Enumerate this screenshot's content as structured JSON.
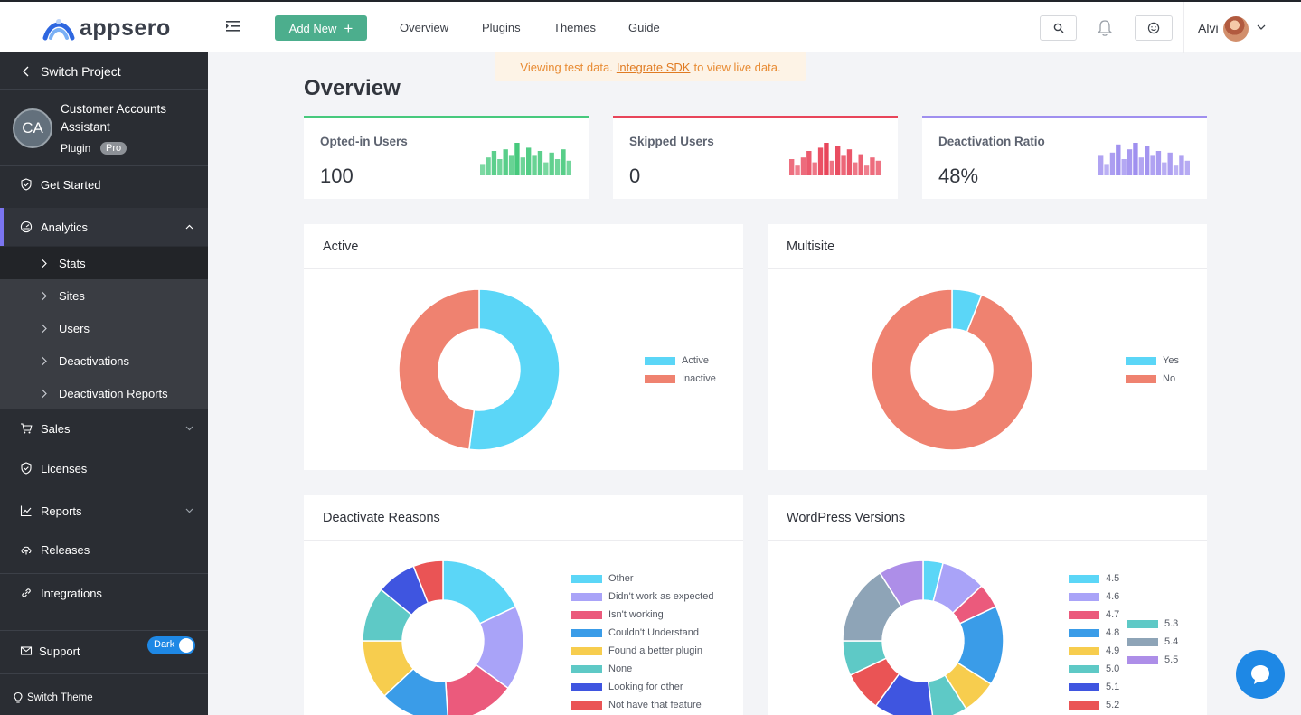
{
  "app": {
    "logo_text": "appsero"
  },
  "topbar": {
    "add_new_label": "Add New",
    "nav": [
      "Overview",
      "Plugins",
      "Themes",
      "Guide"
    ],
    "user_name": "Alvi"
  },
  "notice": {
    "before": "Viewing test data.",
    "link": "Integrate SDK",
    "after": "to view live data."
  },
  "sidebar": {
    "switch_project": "Switch Project",
    "project": {
      "initials": "CA",
      "name": "Customer Accounts Assistant",
      "type": "Plugin",
      "badge": "Pro"
    },
    "get_started": "Get Started",
    "analytics": "Analytics",
    "analytics_sub": [
      "Stats",
      "Sites",
      "Users",
      "Deactivations",
      "Deactivation Reports"
    ],
    "sales": "Sales",
    "licenses": "Licenses",
    "reports": "Reports",
    "releases": "Releases",
    "integrations": "Integrations",
    "support": "Support",
    "switch_theme": "Switch Theme",
    "theme_toggle": "Dark"
  },
  "overview": {
    "title": "Overview",
    "cards": [
      {
        "label": "Opted-in Users",
        "value": "100",
        "color": "#47c97d",
        "spark": [
          0.35,
          0.55,
          0.75,
          0.5,
          0.8,
          0.6,
          1.0,
          0.55,
          0.85,
          0.6,
          0.75,
          0.4,
          0.7,
          0.5,
          0.8,
          0.45
        ]
      },
      {
        "label": "Skipped Users",
        "value": "0",
        "color": "#e8455a",
        "spark": [
          0.5,
          0.3,
          0.55,
          0.75,
          0.4,
          0.85,
          1.0,
          0.45,
          0.9,
          0.6,
          0.8,
          0.4,
          0.65,
          0.3,
          0.55,
          0.45
        ]
      },
      {
        "label": "Deactivation Ratio",
        "value": "48%",
        "color": "#9f8fef",
        "spark": [
          0.6,
          0.35,
          0.7,
          0.95,
          0.5,
          0.8,
          1.0,
          0.55,
          0.9,
          0.6,
          0.75,
          0.4,
          0.7,
          0.3,
          0.6,
          0.45
        ]
      }
    ]
  },
  "panels": {
    "active": {
      "title": "Active"
    },
    "multisite": {
      "title": "Multisite"
    },
    "deactivate": {
      "title": "Deactivate Reasons"
    },
    "wordpress": {
      "title": "WordPress Versions"
    }
  },
  "chart_data": [
    {
      "type": "pie",
      "title": "Active",
      "categories": [
        "Active",
        "Inactive"
      ],
      "values": [
        52,
        48
      ],
      "colors": [
        "#5bd6f7",
        "#ef8270"
      ]
    },
    {
      "type": "pie",
      "title": "Multisite",
      "categories": [
        "Yes",
        "No"
      ],
      "values": [
        6,
        94
      ],
      "colors": [
        "#5bd6f7",
        "#ef8270"
      ]
    },
    {
      "type": "pie",
      "title": "Deactivate Reasons",
      "categories": [
        "Other",
        "Didn't work as expected",
        "Isn't working",
        "Couldn't Understand",
        "Found a better plugin",
        "None",
        "Looking for other",
        "Not have that feature"
      ],
      "values": [
        18,
        17,
        14,
        14,
        12,
        11,
        8,
        6
      ],
      "colors": [
        "#5bd6f7",
        "#a9a3f8",
        "#eb5a7c",
        "#3a9ce8",
        "#f7cd4e",
        "#5ec9c6",
        "#3f55e0",
        "#ea5455"
      ]
    },
    {
      "type": "pie",
      "title": "WordPress Versions",
      "categories": [
        "4.5",
        "4.6",
        "4.7",
        "4.8",
        "4.9",
        "5.0",
        "5.1",
        "5.2",
        "5.3",
        "5.4",
        "5.5"
      ],
      "values": [
        4,
        9,
        5,
        16,
        7,
        7,
        12,
        8,
        7,
        16,
        9
      ],
      "colors": [
        "#5bd6f7",
        "#a9a3f8",
        "#eb5a7c",
        "#3a9ce8",
        "#f7cd4e",
        "#5ec9c6",
        "#3f55e0",
        "#ea5455",
        "#5ec9c6",
        "#8ea4b7",
        "#ad8ee8"
      ]
    }
  ]
}
